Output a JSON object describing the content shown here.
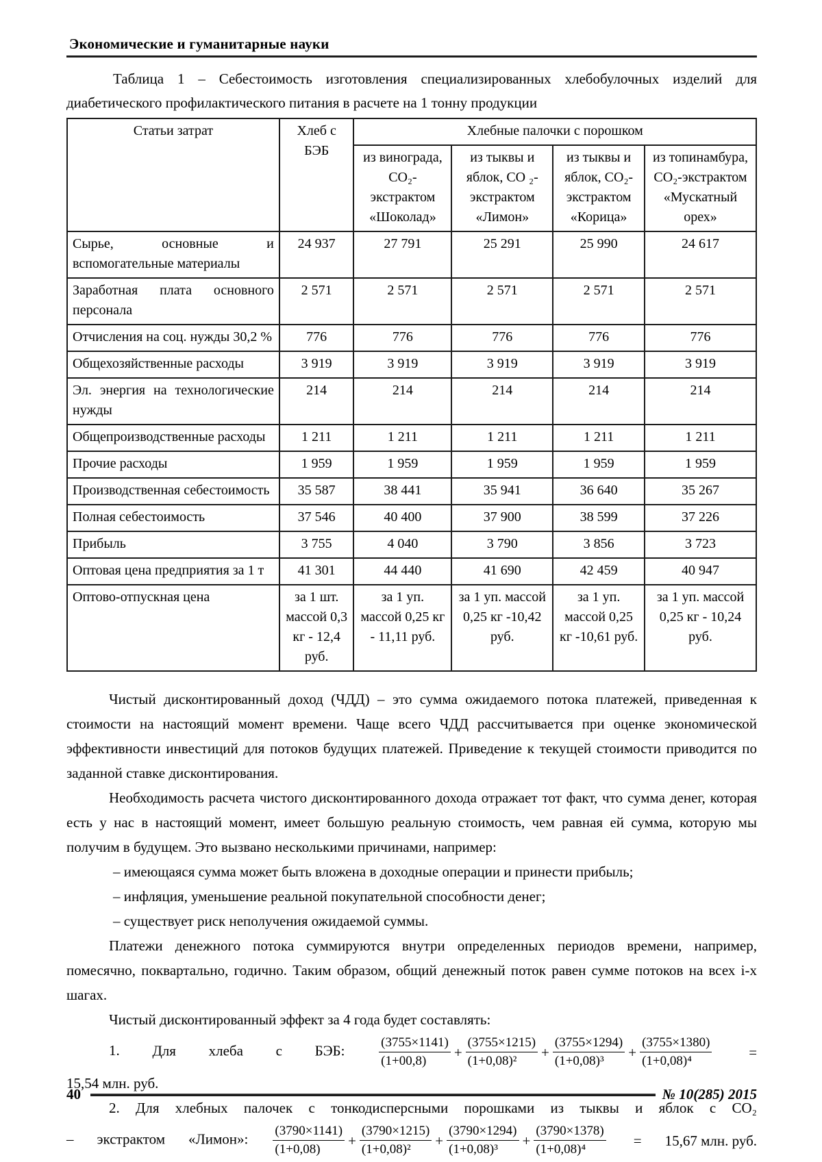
{
  "symbols": {
    "plus": "+",
    "equals": "="
  },
  "journal_header": "Экономические и гуманитарные науки",
  "caption": "Таблица 1 – Себестоимость изготовления специализированных хлебобулочных изделий для диабетического профилактического питания в расчете на 1 тонну продукции",
  "table": {
    "col1_header": "Статьи затрат",
    "col2_header": "Хлеб с БЭБ",
    "group_header": "Хлебные палочки с порошком",
    "sub_headers": [
      "из винограда, CO₂-экстрактом «Шоколад»",
      "из тыквы и яблок, CO ₂- экстрактом «Лимон»",
      "из тыквы и яблок, CO₂-экстрактом «Корица»",
      "из топинамбура, CO₂-экстрактом «Мускатный орех»"
    ],
    "rows": [
      {
        "label": "Сырье, основные и вспомогательные материалы",
        "values": [
          "24 937",
          "27 791",
          "25 291",
          "25 990",
          "24 617"
        ]
      },
      {
        "label": "Заработная плата основного персонала",
        "values": [
          "2 571",
          "2 571",
          "2 571",
          "2 571",
          "2 571"
        ]
      },
      {
        "label": "Отчисления на соц. нужды 30,2 %",
        "values": [
          "776",
          "776",
          "776",
          "776",
          "776"
        ]
      },
      {
        "label": "Общехозяйственные расходы",
        "values": [
          "3 919",
          "3 919",
          "3 919",
          "3 919",
          "3 919"
        ]
      },
      {
        "label": "Эл. энергия на технологические нужды",
        "values": [
          "214",
          "214",
          "214",
          "214",
          "214"
        ]
      },
      {
        "label": "Общепроизводственные расходы",
        "values": [
          "1 211",
          "1 211",
          "1 211",
          "1 211",
          "1 211"
        ]
      },
      {
        "label": "Прочие расходы",
        "values": [
          "1 959",
          "1 959",
          "1 959",
          "1 959",
          "1 959"
        ]
      },
      {
        "label": "Производственная себестоимость",
        "values": [
          "35 587",
          "38 441",
          "35 941",
          "36 640",
          "35 267"
        ]
      },
      {
        "label": "Полная себестоимость",
        "values": [
          "37 546",
          "40 400",
          "37 900",
          "38 599",
          "37 226"
        ]
      },
      {
        "label": "Прибыль",
        "values": [
          "3 755",
          "4 040",
          "3 790",
          "3 856",
          "3 723"
        ]
      },
      {
        "label": "Оптовая цена предприятия за 1 т",
        "values": [
          "41 301",
          "44 440",
          "41 690",
          "42 459",
          "40 947"
        ]
      },
      {
        "label": "Оптово-отпускная цена",
        "values": [
          "за 1 шт. массой 0,3 кг - 12,4 руб.",
          "за 1 уп. массой 0,25 кг - 11,11 руб.",
          "за 1 уп. массой 0,25 кг -10,42 руб.",
          "за 1 уп. массой 0,25 кг -10,61 руб.",
          "за 1 уп. массой 0,25 кг - 10,24 руб."
        ]
      }
    ]
  },
  "paragraphs": {
    "p1": "Чистый дисконтированный доход (ЧДД) – это сумма ожидаемого потока платежей, приведенная к стоимости на настоящий момент времени. Чаще всего ЧДД рассчитывается при оценке экономической эффективности инвестиций для потоков будущих платежей. Приведение к текущей стоимости приводится по заданной ставке дисконтирования.",
    "p2": "Необходимость расчета чистого дисконтированного дохода отражает тот факт, что сумма денег, которая есть у нас в настоящий момент, имеет большую реальную стоимость, чем равная ей сумма, которую мы получим в будущем. Это вызвано несколькими причинами, например:",
    "p3": "Платежи денежного потока суммируются внутри определенных периодов времени, например, помесячно, поквартально, годично. Таким образом, общий денежный поток равен сумме потоков на всех i-х шагах.",
    "p4": "Чистый дисконтированный эффект за 4 года будет составлять:"
  },
  "bullets": [
    "– имеющаяся сумма может быть вложена в доходные операции и принести прибыль;",
    "– инфляция, уменьшение реальной покупательной способности денег;",
    "– существует риск неполучения ожидаемой суммы."
  ],
  "formulas": [
    {
      "number": "1.",
      "intro": "Для хлеба с БЭБ:",
      "fractions": [
        {
          "num": "(3755×1141)",
          "den": "(1+00,8)"
        },
        {
          "num": "(3755×1215)",
          "den": "(1+0,08)²"
        },
        {
          "num": "(3755×1294)",
          "den": "(1+0,08)³"
        },
        {
          "num": "(3755×1380)",
          "den": "(1+0,08)⁴"
        }
      ],
      "result": "15,54 млн. руб."
    },
    {
      "number": "2.",
      "intro_line": "Для хлебных палочек с тонкодисперсными порошками из тыквы и яблок с CO₂",
      "prefix": "– экстрактом «Лимон»:",
      "fractions": [
        {
          "num": "(3790×1141)",
          "den": "(1+0,08)"
        },
        {
          "num": "(3790×1215)",
          "den": "(1+0,08)²"
        },
        {
          "num": "(3790×1294)",
          "den": "(1+0,08)³"
        },
        {
          "num": "(3790×1378)",
          "den": "(1+0,08)⁴"
        }
      ],
      "result": "15,67 млн.  руб."
    }
  ],
  "footer": {
    "page_number": "40",
    "issue": "№ 10(285) 2015"
  }
}
